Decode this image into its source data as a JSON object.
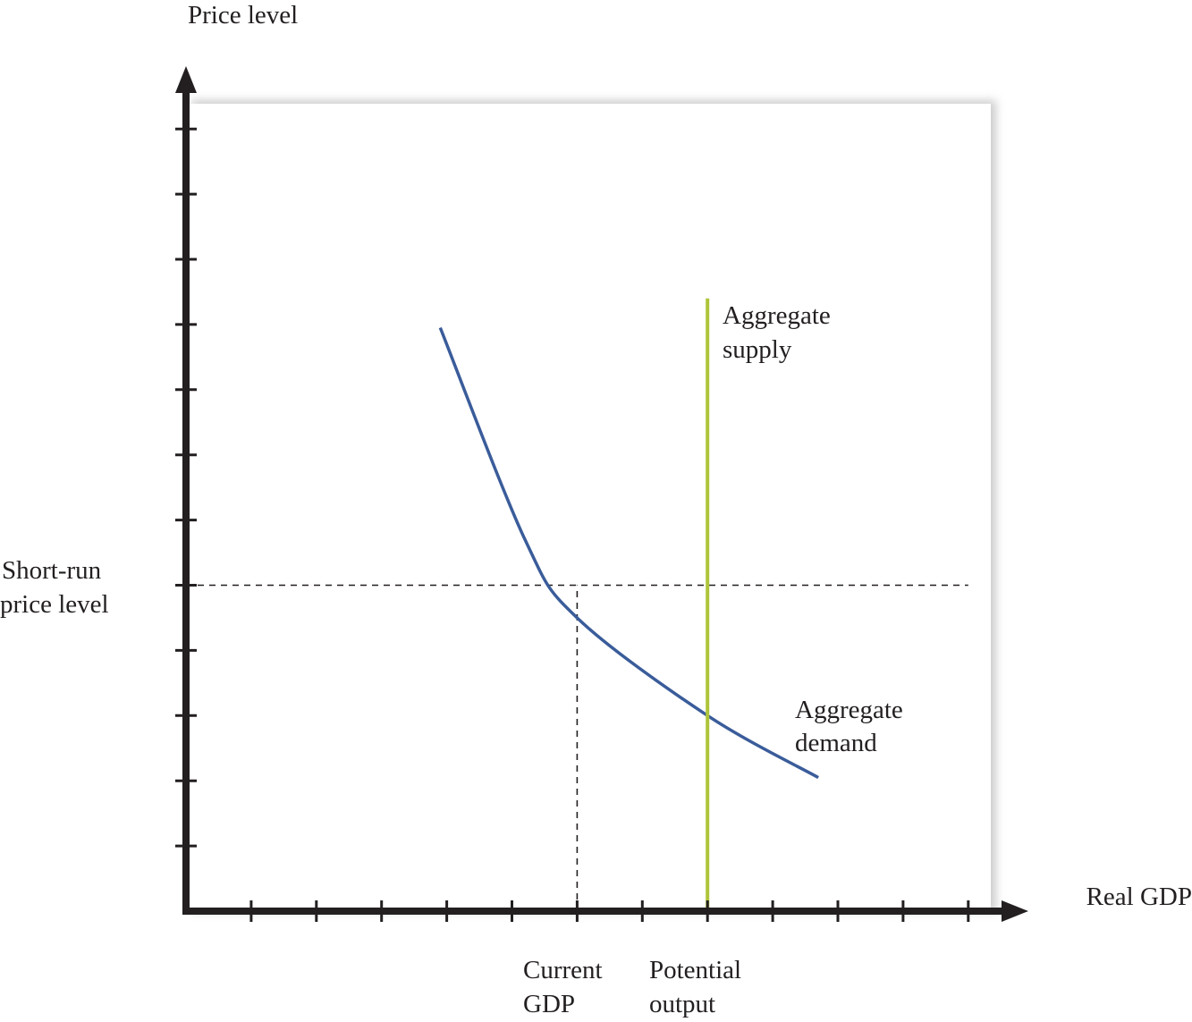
{
  "chart_data": {
    "type": "line",
    "title": "",
    "ylabel": "Price level",
    "xlabel": "Real GDP",
    "xlim": [
      0,
      12.5
    ],
    "ylim": [
      0,
      12.5
    ],
    "x_ticks": [
      1,
      2,
      3,
      4,
      5,
      6,
      7,
      8,
      9,
      10,
      11,
      12
    ],
    "y_ticks": [
      1,
      2,
      3,
      4,
      5,
      6,
      7,
      8,
      9,
      10,
      11,
      12
    ],
    "series": [
      {
        "name": "Aggregate demand",
        "name_lines": [
          "Aggregate",
          "demand"
        ],
        "color": "#3a5c9a",
        "points": [
          [
            3.9,
            8.95
          ],
          [
            5.2,
            5.7
          ],
          [
            6.0,
            4.5
          ],
          [
            8.0,
            3.0
          ],
          [
            9.7,
            2.05
          ]
        ]
      },
      {
        "name": "Aggregate supply",
        "name_lines": [
          "Aggregate",
          "supply"
        ],
        "color": "#afc43a",
        "points": [
          [
            8.0,
            0
          ],
          [
            8.0,
            9.4
          ]
        ]
      }
    ],
    "reference_lines": [
      {
        "orientation": "horizontal",
        "y": 5.0,
        "x_range": [
          0,
          12.0
        ],
        "style": "dashed",
        "label_lines": [
          "Short-run",
          "price level"
        ]
      },
      {
        "orientation": "vertical",
        "x": 6.0,
        "y_range": [
          0,
          5.0
        ],
        "style": "dashed",
        "label_lines": [
          "Current",
          "GDP"
        ]
      }
    ],
    "x_annotations": [
      {
        "x": 8.0,
        "label_lines": [
          "Potential",
          "output"
        ]
      }
    ],
    "grid": false,
    "legend": "none",
    "colors": {
      "axis": "#231f20",
      "background": "#ffffff",
      "plot_shadow": "#bdbdbd"
    }
  }
}
